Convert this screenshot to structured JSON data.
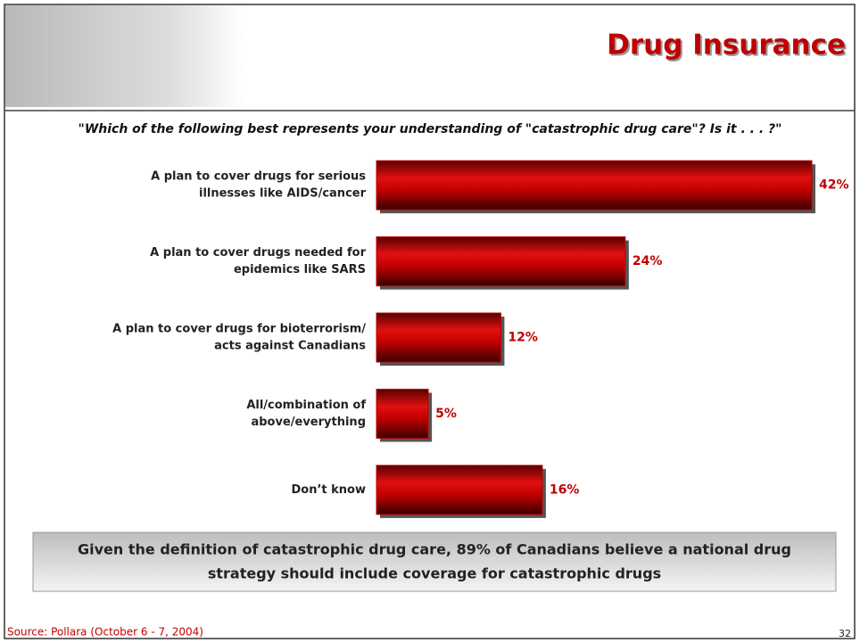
{
  "chart_data": {
    "type": "hbar",
    "title": "Drug Insurance",
    "subtitle": "\"Which of the following best represents your understanding of \"catastrophic drug care\"? Is it . . . ?\"",
    "categories": [
      [
        "A plan to cover drugs for serious",
        "illnesses like AIDS/cancer"
      ],
      [
        "A plan to cover drugs needed for",
        "epidemics like SARS"
      ],
      [
        "A plan to cover drugs for bioterrorism/",
        "acts against Canadians"
      ],
      [
        "All/combination of",
        "above/everything"
      ],
      [
        "Don’t know"
      ]
    ],
    "values": [
      42,
      24,
      12,
      5,
      16
    ],
    "value_labels": [
      "42%",
      "24%",
      "12%",
      "5%",
      "16%"
    ],
    "color": "#c00000",
    "note": [
      "Given the definition of catastrophic drug care, 89% of Canadians believe a national drug",
      "strategy should include coverage for catastrophic drugs"
    ],
    "source": "Source: Pollara (October 6 - 7, 2004)",
    "page_number": "32"
  }
}
